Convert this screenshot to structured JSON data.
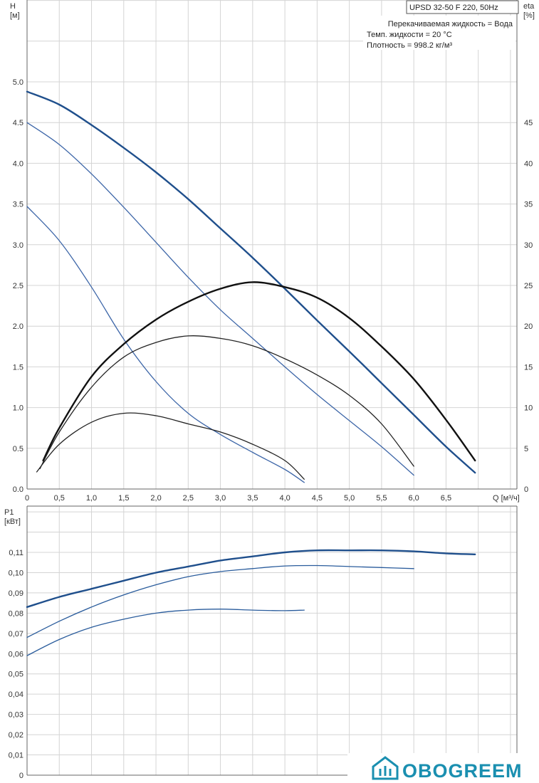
{
  "header": {
    "model": "UPSD 32-50 F 220, 50Hz",
    "info_lines": [
      "Перекачиваемая жидкость = Вода",
      "Темп. жидкости = 20 °C",
      "Плотность = 998.2 кг/м³"
    ]
  },
  "logo": {
    "text": "OBOGREEM",
    "color": "#1a8fb0",
    "icon": "house-icon"
  },
  "chart_data": [
    {
      "type": "line",
      "xlabel": "Q [м³/ч]",
      "ylabel": "H\n[м]",
      "y2label": "eta\n[%]",
      "xlim": [
        0,
        7.6
      ],
      "ylim": [
        0,
        5.0
      ],
      "y2lim": [
        0,
        50
      ],
      "x_ticks": [
        "0",
        "0,5",
        "1,0",
        "1,5",
        "2,0",
        "2,5",
        "3,0",
        "3,5",
        "4,0",
        "4,5",
        "5,0",
        "5,5",
        "6,0",
        "6,5"
      ],
      "y_ticks": [
        "0.0",
        "0.5",
        "1.0",
        "1.5",
        "2.0",
        "2.5",
        "3.0",
        "3.5",
        "4.0",
        "4.5",
        "5.0"
      ],
      "y2_ticks": [
        "0",
        "5",
        "10",
        "15",
        "20",
        "25",
        "30",
        "35",
        "40",
        "45"
      ],
      "grid": true,
      "series": [
        {
          "kind": "head",
          "color": "#1f4f8c",
          "width": 2.4,
          "points": [
            [
              0,
              4.88
            ],
            [
              0.5,
              4.72
            ],
            [
              1.0,
              4.47
            ],
            [
              1.5,
              4.19
            ],
            [
              2.0,
              3.89
            ],
            [
              2.5,
              3.56
            ],
            [
              3.0,
              3.2
            ],
            [
              3.5,
              2.84
            ],
            [
              4.0,
              2.46
            ],
            [
              4.5,
              2.07
            ],
            [
              5.0,
              1.69
            ],
            [
              5.5,
              1.3
            ],
            [
              6.0,
              0.91
            ],
            [
              6.5,
              0.52
            ],
            [
              6.95,
              0.2
            ]
          ]
        },
        {
          "kind": "head",
          "color": "#3d66a8",
          "width": 1.3,
          "points": [
            [
              0,
              4.5
            ],
            [
              0.5,
              4.23
            ],
            [
              1.0,
              3.87
            ],
            [
              1.5,
              3.46
            ],
            [
              2.0,
              3.03
            ],
            [
              2.5,
              2.6
            ],
            [
              3.0,
              2.2
            ],
            [
              3.5,
              1.85
            ],
            [
              4.0,
              1.5
            ],
            [
              4.5,
              1.16
            ],
            [
              5.0,
              0.84
            ],
            [
              5.5,
              0.52
            ],
            [
              6.0,
              0.17
            ]
          ]
        },
        {
          "kind": "head",
          "color": "#3d66a8",
          "width": 1.3,
          "points": [
            [
              0,
              3.47
            ],
            [
              0.5,
              3.05
            ],
            [
              1.0,
              2.48
            ],
            [
              1.5,
              1.84
            ],
            [
              2.0,
              1.32
            ],
            [
              2.5,
              0.93
            ],
            [
              3.0,
              0.67
            ],
            [
              3.5,
              0.45
            ],
            [
              4.0,
              0.24
            ],
            [
              4.3,
              0.08
            ]
          ]
        },
        {
          "kind": "eta",
          "color": "#111111",
          "width": 2.4,
          "points": [
            [
              0.25,
              3.5
            ],
            [
              0.5,
              7.5
            ],
            [
              1.0,
              13.8
            ],
            [
              1.5,
              17.8
            ],
            [
              2.0,
              20.8
            ],
            [
              2.5,
              23.0
            ],
            [
              3.0,
              24.6
            ],
            [
              3.5,
              25.4
            ],
            [
              4.0,
              24.8
            ],
            [
              4.5,
              23.5
            ],
            [
              5.0,
              21.0
            ],
            [
              5.5,
              17.5
            ],
            [
              6.0,
              13.5
            ],
            [
              6.5,
              8.5
            ],
            [
              6.95,
              3.5
            ]
          ]
        },
        {
          "kind": "eta",
          "color": "#222222",
          "width": 1.3,
          "points": [
            [
              0.2,
              2.5
            ],
            [
              0.5,
              7.0
            ],
            [
              1.0,
              12.5
            ],
            [
              1.5,
              16.2
            ],
            [
              2.0,
              18.0
            ],
            [
              2.5,
              18.8
            ],
            [
              3.0,
              18.5
            ],
            [
              3.5,
              17.6
            ],
            [
              4.0,
              16.0
            ],
            [
              4.5,
              14.0
            ],
            [
              5.0,
              11.5
            ],
            [
              5.5,
              8.0
            ],
            [
              6.0,
              2.8
            ]
          ]
        },
        {
          "kind": "eta",
          "color": "#222222",
          "width": 1.3,
          "points": [
            [
              0.15,
              2.1
            ],
            [
              0.5,
              5.5
            ],
            [
              1.0,
              8.2
            ],
            [
              1.5,
              9.3
            ],
            [
              2.0,
              9.0
            ],
            [
              2.5,
              8.0
            ],
            [
              3.0,
              7.0
            ],
            [
              3.5,
              5.5
            ],
            [
              4.0,
              3.5
            ],
            [
              4.3,
              1.2
            ]
          ]
        }
      ]
    },
    {
      "type": "line",
      "xlabel": "",
      "ylabel": "P1\n[кВт]",
      "xlim": [
        0,
        7.6
      ],
      "ylim": [
        0,
        0.12
      ],
      "y_ticks": [
        "0",
        "0,01",
        "0,02",
        "0,03",
        "0,04",
        "0,05",
        "0,06",
        "0,07",
        "0,08",
        "0,09",
        "0,10",
        "0,11"
      ],
      "grid": true,
      "series": [
        {
          "kind": "power",
          "color": "#1f4f8c",
          "width": 2.4,
          "points": [
            [
              0,
              0.083
            ],
            [
              0.5,
              0.088
            ],
            [
              1.0,
              0.092
            ],
            [
              1.5,
              0.096
            ],
            [
              2.0,
              0.1
            ],
            [
              2.5,
              0.103
            ],
            [
              3.0,
              0.106
            ],
            [
              3.5,
              0.108
            ],
            [
              4.0,
              0.11
            ],
            [
              4.5,
              0.111
            ],
            [
              5.0,
              0.111
            ],
            [
              5.5,
              0.111
            ],
            [
              6.0,
              0.1105
            ],
            [
              6.5,
              0.1095
            ],
            [
              6.95,
              0.109
            ]
          ]
        },
        {
          "kind": "power",
          "color": "#2a5c9c",
          "width": 1.3,
          "points": [
            [
              0,
              0.068
            ],
            [
              0.5,
              0.076
            ],
            [
              1.0,
              0.083
            ],
            [
              1.5,
              0.089
            ],
            [
              2.0,
              0.094
            ],
            [
              2.5,
              0.098
            ],
            [
              3.0,
              0.1005
            ],
            [
              3.5,
              0.102
            ],
            [
              4.0,
              0.1033
            ],
            [
              4.5,
              0.1035
            ],
            [
              5.0,
              0.103
            ],
            [
              5.5,
              0.1025
            ],
            [
              6.0,
              0.102
            ]
          ]
        },
        {
          "kind": "power",
          "color": "#2a5c9c",
          "width": 1.3,
          "points": [
            [
              0,
              0.059
            ],
            [
              0.5,
              0.067
            ],
            [
              1.0,
              0.073
            ],
            [
              1.5,
              0.077
            ],
            [
              2.0,
              0.08
            ],
            [
              2.5,
              0.0815
            ],
            [
              3.0,
              0.082
            ],
            [
              3.5,
              0.0815
            ],
            [
              4.0,
              0.0812
            ],
            [
              4.3,
              0.0815
            ]
          ]
        }
      ]
    }
  ]
}
